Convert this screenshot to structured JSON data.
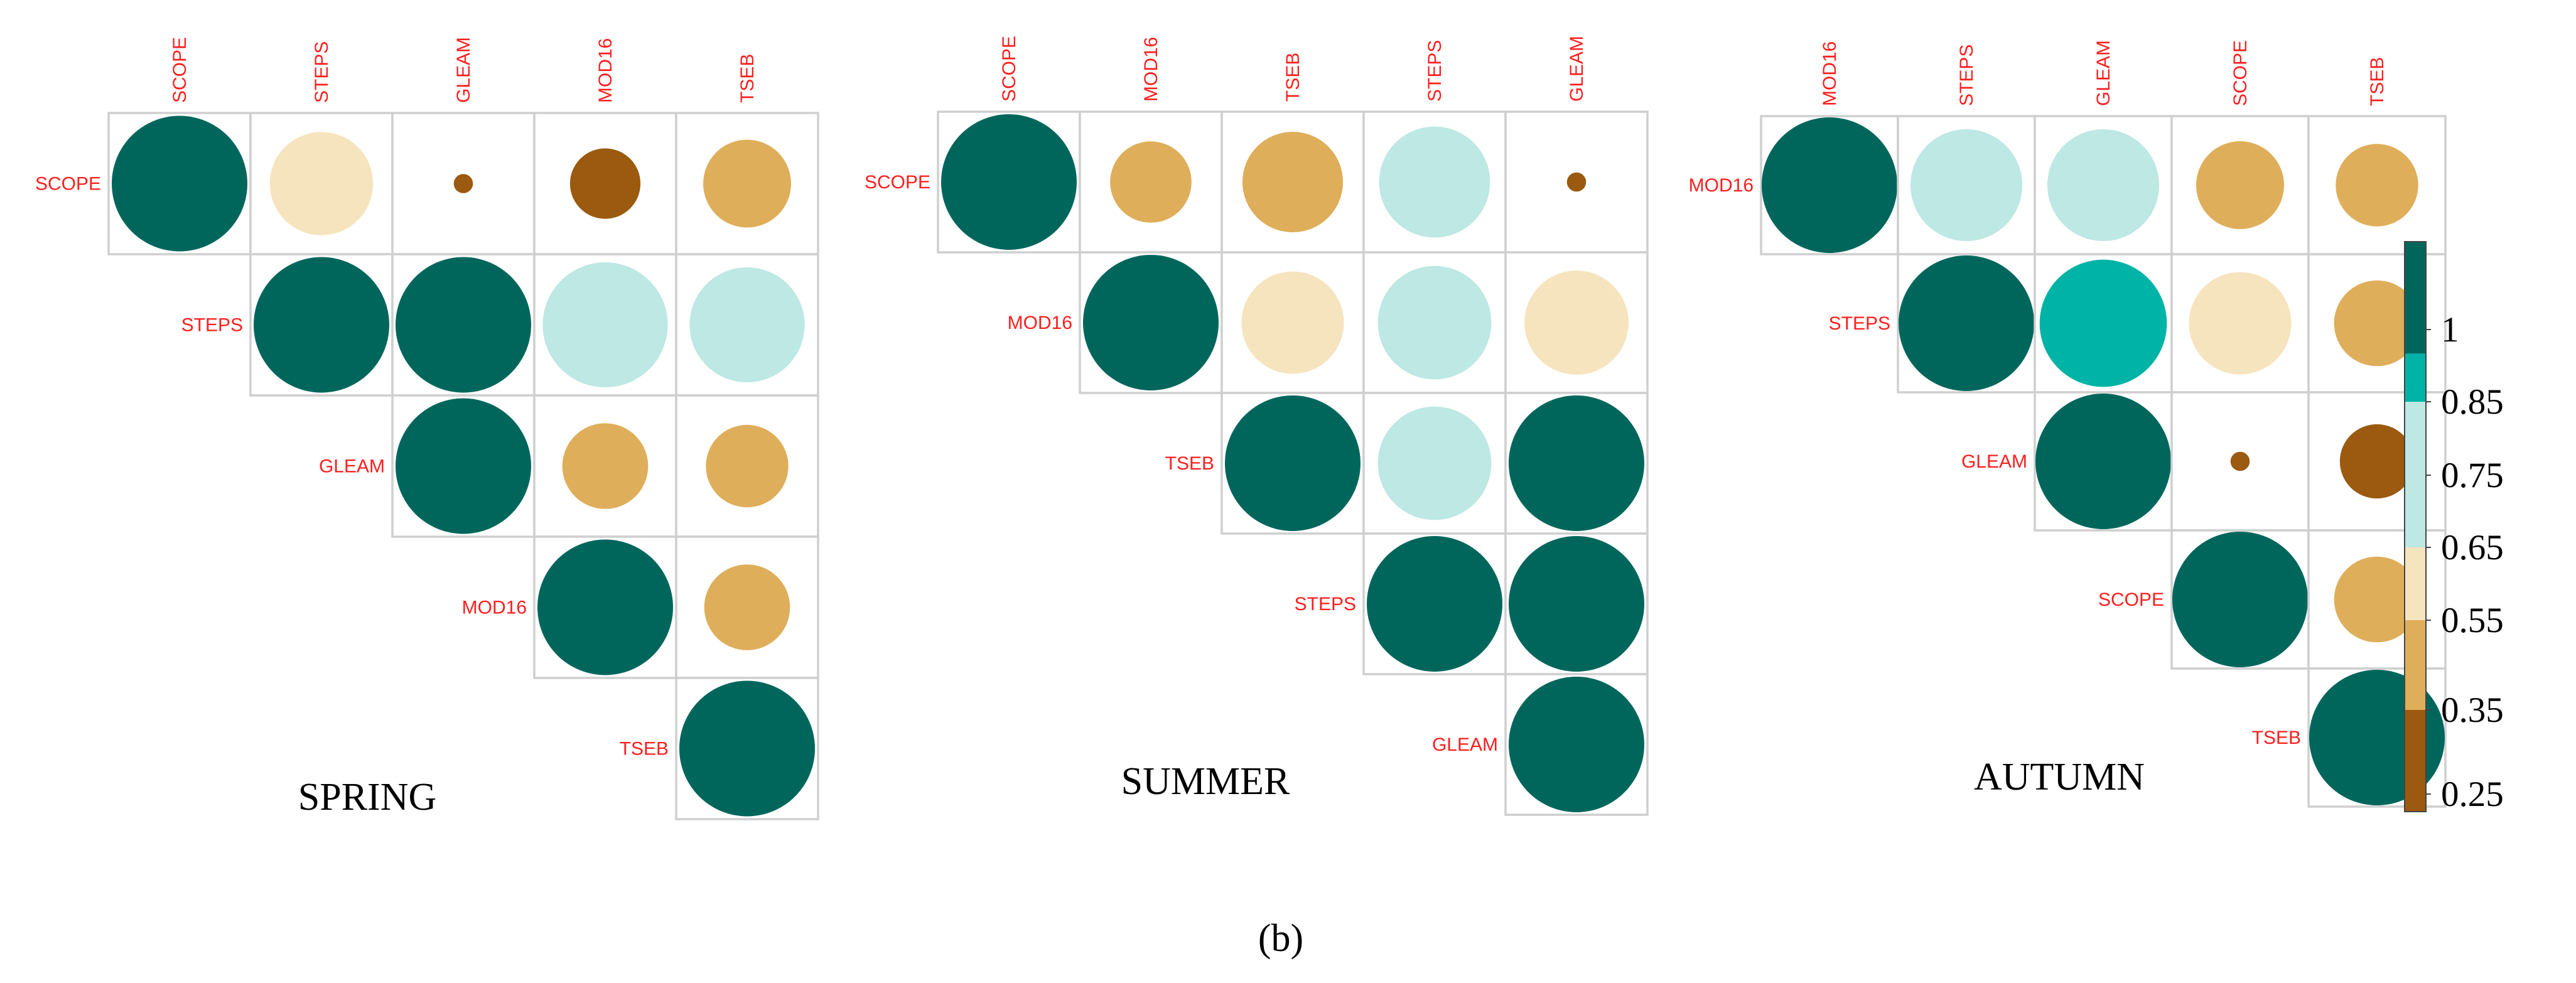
{
  "chart_data": {
    "type": "heatmap",
    "subtype": "upper-triangular correlation plot (circle size and colour encode r)",
    "panels": [
      {
        "title": "SPRING",
        "variables": [
          "SCOPE",
          "STEPS",
          "GLEAM",
          "MOD16",
          "TSEB"
        ],
        "matrix": [
          [
            1.0,
            0.58,
            0.02,
            0.27,
            0.42
          ],
          [
            null,
            1.0,
            1.0,
            0.85,
            0.72
          ],
          [
            null,
            null,
            1.0,
            0.4,
            0.37
          ],
          [
            null,
            null,
            null,
            1.0,
            0.4
          ],
          [
            null,
            null,
            null,
            null,
            1.0
          ]
        ]
      },
      {
        "title": "SUMMER",
        "variables": [
          "SCOPE",
          "MOD16",
          "TSEB",
          "STEPS",
          "GLEAM"
        ],
        "matrix": [
          [
            1.0,
            0.36,
            0.55,
            0.67,
            0.02
          ],
          [
            null,
            1.0,
            0.57,
            0.7,
            0.59
          ],
          [
            null,
            null,
            1.0,
            0.7,
            1.0
          ],
          [
            null,
            null,
            null,
            1.0,
            1.0
          ],
          [
            null,
            null,
            null,
            null,
            1.0
          ]
        ]
      },
      {
        "title": "AUTUMN",
        "variables": [
          "MOD16",
          "STEPS",
          "GLEAM",
          "SCOPE",
          "TSEB"
        ],
        "matrix": [
          [
            1.0,
            0.68,
            0.68,
            0.42,
            0.37
          ],
          [
            null,
            1.0,
            0.88,
            0.57,
            0.4
          ],
          [
            null,
            null,
            1.0,
            0.02,
            0.3
          ],
          [
            null,
            null,
            null,
            1.0,
            0.4
          ],
          [
            null,
            null,
            null,
            null,
            1.0
          ]
        ]
      }
    ],
    "colorbar": {
      "ticks": [
        "1",
        "0.85",
        "0.75",
        "0.65",
        "0.55",
        "0.35",
        "0.25"
      ],
      "bands": [
        {
          "from": 0.25,
          "to": 0.35,
          "color": "#9b5a0f"
        },
        {
          "from": 0.35,
          "to": 0.55,
          "color": "#dfae5a"
        },
        {
          "from": 0.55,
          "to": 0.65,
          "color": "#f6e4be"
        },
        {
          "from": 0.65,
          "to": 0.75,
          "color": "#bde8e3"
        },
        {
          "from": 0.75,
          "to": 0.85,
          "color": "#bde8e3"
        },
        {
          "from": 0.85,
          "to": 0.95,
          "color": "#00b3a7"
        },
        {
          "from": 0.95,
          "to": 1.0,
          "color": "#00665c"
        }
      ]
    },
    "caption": "(b)"
  }
}
